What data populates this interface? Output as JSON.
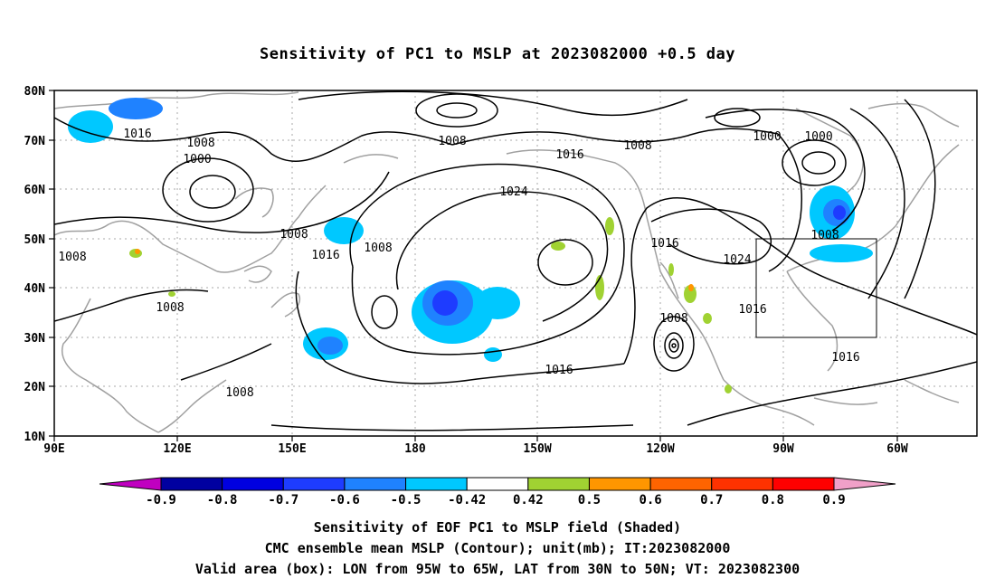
{
  "title": "Sensitivity of PC1 to MSLP at 2023082000 +0.5 day",
  "lat_labels": [
    "80N",
    "70N",
    "60N",
    "50N",
    "40N",
    "30N",
    "20N",
    "10N"
  ],
  "lon_labels": [
    "90E",
    "120E",
    "150E",
    "180",
    "150W",
    "120W",
    "90W",
    "60W"
  ],
  "colorbar": {
    "values": [
      "-0.9",
      "-0.8",
      "-0.7",
      "-0.6",
      "-0.5",
      "-0.42",
      "0.42",
      "0.5",
      "0.6",
      "0.7",
      "0.8",
      "0.9"
    ],
    "colors": [
      "#c000c0",
      "#0000a0",
      "#0000e0",
      "#1e3cff",
      "#1f82ff",
      "#00c8ff",
      "#ffffff",
      "#a0d232",
      "#ff9600",
      "#ff6400",
      "#ff3200",
      "#ff0000",
      "#f0a0c8"
    ]
  },
  "contour_labels": [
    "1016",
    "1008",
    "1000",
    "1008",
    "1008",
    "1016",
    "1024",
    "1008",
    "1000",
    "1000",
    "1008",
    "1016",
    "1024",
    "1008",
    "1016",
    "1016",
    "1008",
    "1008",
    "1016",
    "1008",
    "1008",
    "1016"
  ],
  "colors": {
    "contour": "#000000",
    "coast": "#a0a0a0",
    "box": "#000000"
  },
  "captions": {
    "line1": "Sensitivity of EOF PC1 to MSLP field (Shaded)",
    "line2": "CMC ensemble mean MSLP (Contour); unit(mb); IT:2023082000",
    "line3": "Valid area (box): LON from 95W to 65W, LAT from 30N to 50N; VT: 2023082300"
  }
}
